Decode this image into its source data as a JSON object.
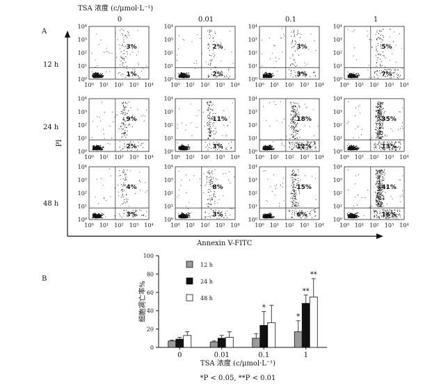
{
  "figure": {
    "panel_a_label": "A",
    "panel_b_label": "B",
    "conc_header": "TSA 浓度 (c/μmol·L⁻¹)",
    "concentrations": [
      "0",
      "0.01",
      "0.1",
      "1"
    ],
    "times": [
      "12 h",
      "24 h",
      "48 h"
    ],
    "y_axis_label": "PI",
    "x_axis_label": "Annexin V-FITC",
    "flow_tick_labels": [
      "10⁰",
      "10¹",
      "10²",
      "10³",
      "10⁴"
    ],
    "significance_note": "*P < 0.05, **P < 0.01"
  },
  "flow_data": {
    "rows": [
      {
        "time": "12 h",
        "upper_right": [
          "3%",
          "2%",
          "3%",
          "5%"
        ],
        "lower_right": [
          "1%",
          "2%",
          "3%",
          "7%"
        ]
      },
      {
        "time": "24 h",
        "upper_right": [
          "9%",
          "11%",
          "18%",
          "35%"
        ],
        "lower_right": [
          "2%",
          "3%",
          "12%",
          "13%"
        ]
      },
      {
        "time": "48 h",
        "upper_right": [
          "4%",
          "8%",
          "15%",
          "41%"
        ],
        "lower_right": [
          "3%",
          "3%",
          "6%",
          "16%"
        ]
      }
    ]
  },
  "chart_data": {
    "type": "bar",
    "categories": [
      "0",
      "0.01",
      "0.1",
      "1"
    ],
    "xlabel": "TSA 浓度 (c/μmol·L⁻¹)",
    "ylabel": "细胞凋亡率%",
    "ylim": [
      0,
      100
    ],
    "yticks": [
      0,
      20,
      40,
      60,
      80,
      100
    ],
    "legend_position": "upper-left",
    "series": [
      {
        "name": "12 h",
        "color": "#9a9a9a",
        "values": [
          7,
          6,
          10,
          17
        ],
        "errors": [
          1,
          1,
          5,
          12
        ],
        "marks": [
          "",
          "",
          "",
          "*"
        ]
      },
      {
        "name": "24 h",
        "color": "#111111",
        "values": [
          9,
          10,
          24,
          48
        ],
        "errors": [
          2,
          3,
          15,
          9
        ],
        "marks": [
          "",
          "",
          "*",
          "**"
        ]
      },
      {
        "name": "48 h",
        "color": "#ffffff",
        "values": [
          13,
          11,
          27,
          55
        ],
        "errors": [
          4,
          6,
          19,
          20
        ],
        "marks": [
          "",
          "",
          "",
          "**"
        ]
      }
    ]
  }
}
